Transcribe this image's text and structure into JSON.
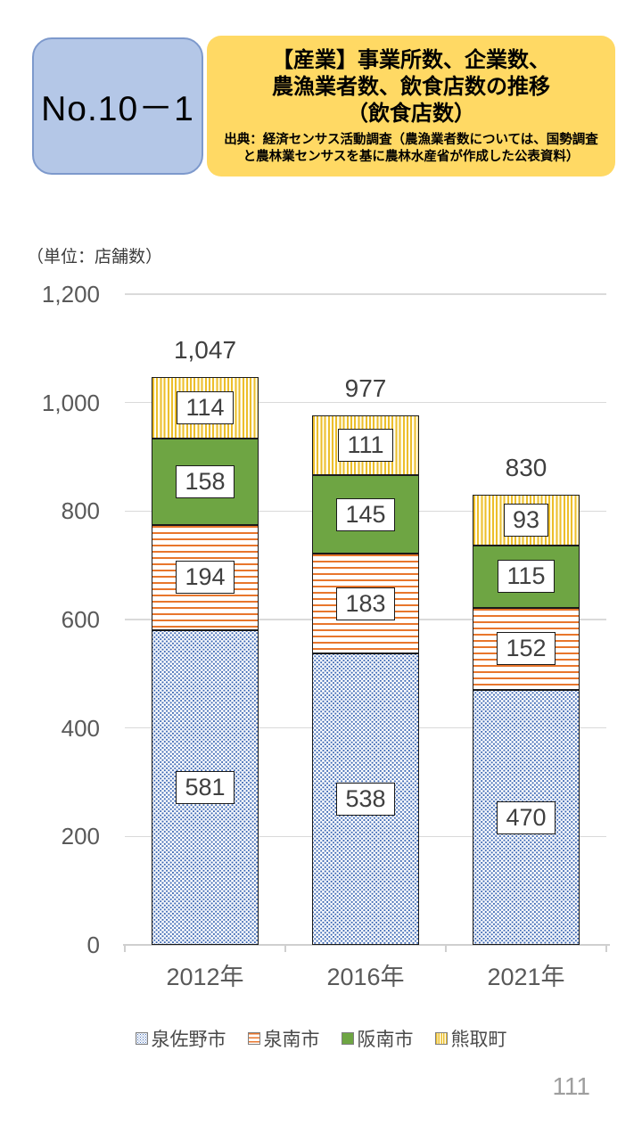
{
  "header": {
    "badge_label": "No.10－1",
    "title_lines": [
      "【産業】事業所数、企業数、",
      "農漁業者数、飲食店数の推移",
      "（飲食店数）"
    ],
    "source_lines": [
      "出典：経済センサス活動調査（農漁業者数については、国勢調査",
      "と農林業センサスを基に農林水産省が作成した公表資料）"
    ],
    "colors": {
      "badge_bg": "#b4c7e7",
      "badge_border": "#7d99cc",
      "title_bg": "#ffd964"
    }
  },
  "unit_label": "（単位：店舗数）",
  "page_number": "111",
  "chart_data": {
    "type": "bar",
    "stacked": true,
    "categories": [
      "2012年",
      "2016年",
      "2021年"
    ],
    "series": [
      {
        "name": "泉佐野市",
        "values": [
          581,
          538,
          470
        ],
        "pattern": "blue-dots",
        "color": "#3f6ab5"
      },
      {
        "name": "泉南市",
        "values": [
          194,
          183,
          152
        ],
        "pattern": "orange-hstripes",
        "color": "#e8762c"
      },
      {
        "name": "阪南市",
        "values": [
          158,
          145,
          115
        ],
        "pattern": "green-solid",
        "color": "#6ea543"
      },
      {
        "name": "熊取町",
        "values": [
          114,
          111,
          93
        ],
        "pattern": "yellow-vstripes",
        "color": "#ecbe2b"
      }
    ],
    "totals": [
      1047,
      977,
      830
    ],
    "totals_labels": [
      "1,047",
      "977",
      "830"
    ],
    "ylim": [
      0,
      1200
    ],
    "yticks": [
      {
        "value": 0,
        "label": "0"
      },
      {
        "value": 200,
        "label": "200"
      },
      {
        "value": 400,
        "label": "400"
      },
      {
        "value": 600,
        "label": "600"
      },
      {
        "value": 800,
        "label": "800"
      },
      {
        "value": 1000,
        "label": "1,000"
      },
      {
        "value": 1200,
        "label": "1,200"
      }
    ],
    "grid": true,
    "legend_position": "bottom"
  }
}
